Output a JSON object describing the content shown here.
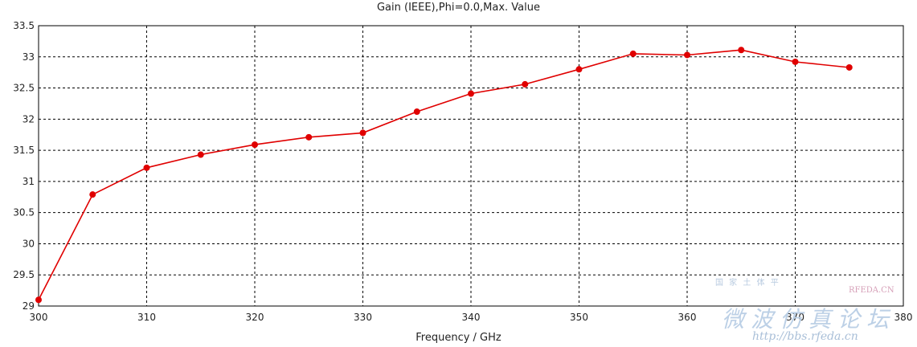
{
  "chart_data": {
    "type": "line",
    "title": "Gain (IEEE),Phi=0.0,Max. Value",
    "xlabel": "Frequency / GHz",
    "ylabel": "",
    "xlim": [
      300,
      380
    ],
    "ylim": [
      29,
      33.5
    ],
    "x_ticks": [
      "300",
      "310",
      "320",
      "330",
      "340",
      "350",
      "360",
      "370",
      "380"
    ],
    "y_ticks": [
      "29",
      "29.5",
      "30",
      "30.5",
      "31",
      "31.5",
      "32",
      "32.5",
      "33",
      "33.5"
    ],
    "grid": true,
    "series": [
      {
        "color": "#e00000",
        "x": [
          300,
          305,
          310,
          315,
          320,
          325,
          330,
          335,
          340,
          345,
          350,
          355,
          360,
          365,
          370,
          375
        ],
        "y": [
          29.1,
          30.79,
          31.22,
          31.43,
          31.59,
          31.71,
          31.78,
          32.12,
          32.41,
          32.56,
          32.8,
          33.05,
          33.03,
          33.11,
          32.92,
          32.83
        ]
      }
    ]
  },
  "watermark": {
    "site": "RFEDA.CN",
    "small": "国 家 土 体 平",
    "cn": "微波仿真论坛",
    "url": "http://bbs.rfeda.cn"
  }
}
